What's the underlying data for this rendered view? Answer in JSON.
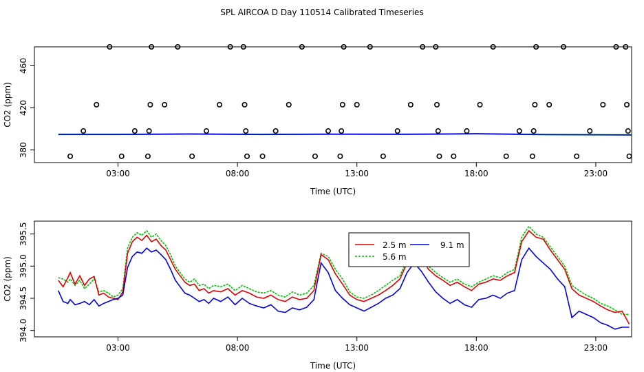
{
  "title": "SPL AIRCOA D  Day 110514  Calibrated Timeseries",
  "colors": {
    "axis": "#000000",
    "series_red": "#e00000",
    "series_green": "#00c000",
    "series_blue": "#0000e0",
    "teal": "#008080"
  },
  "chart_data": [
    {
      "type": "scatter",
      "xlabel": "Time (UTC)",
      "ylabel": "CO2 (ppm)",
      "xlim": [
        -0.5,
        24.5
      ],
      "ylim": [
        368,
        478
      ],
      "xticks": [
        3,
        8,
        13,
        18,
        23
      ],
      "xtick_labels": [
        "03:00",
        "08:00",
        "13:00",
        "18:00",
        "23:00"
      ],
      "yticks": [
        380,
        420,
        460
      ],
      "ytick_labels": [
        "380",
        "420",
        "460"
      ],
      "calibration_points": [
        {
          "x": 1.0,
          "y": 374
        },
        {
          "x": 1.55,
          "y": 398
        },
        {
          "x": 2.1,
          "y": 423
        },
        {
          "x": 2.65,
          "y": 478
        },
        {
          "x": 3.15,
          "y": 374
        },
        {
          "x": 3.7,
          "y": 398
        },
        {
          "x": 4.25,
          "y": 374
        },
        {
          "x": 4.3,
          "y": 398
        },
        {
          "x": 4.35,
          "y": 423
        },
        {
          "x": 4.4,
          "y": 478
        },
        {
          "x": 4.95,
          "y": 423
        },
        {
          "x": 5.5,
          "y": 478
        },
        {
          "x": 6.1,
          "y": 374
        },
        {
          "x": 6.7,
          "y": 398
        },
        {
          "x": 7.25,
          "y": 423
        },
        {
          "x": 7.7,
          "y": 478
        },
        {
          "x": 8.25,
          "y": 478
        },
        {
          "x": 8.3,
          "y": 423
        },
        {
          "x": 8.35,
          "y": 398
        },
        {
          "x": 8.4,
          "y": 374
        },
        {
          "x": 9.05,
          "y": 374
        },
        {
          "x": 9.6,
          "y": 398
        },
        {
          "x": 10.15,
          "y": 423
        },
        {
          "x": 10.7,
          "y": 478
        },
        {
          "x": 11.25,
          "y": 374
        },
        {
          "x": 11.8,
          "y": 398
        },
        {
          "x": 12.3,
          "y": 374
        },
        {
          "x": 12.35,
          "y": 398
        },
        {
          "x": 12.4,
          "y": 423
        },
        {
          "x": 12.45,
          "y": 478
        },
        {
          "x": 13.0,
          "y": 423
        },
        {
          "x": 13.55,
          "y": 478
        },
        {
          "x": 14.1,
          "y": 374
        },
        {
          "x": 14.7,
          "y": 398
        },
        {
          "x": 15.25,
          "y": 423
        },
        {
          "x": 15.75,
          "y": 478
        },
        {
          "x": 16.3,
          "y": 478
        },
        {
          "x": 16.35,
          "y": 423
        },
        {
          "x": 16.4,
          "y": 398
        },
        {
          "x": 16.45,
          "y": 374
        },
        {
          "x": 17.05,
          "y": 374
        },
        {
          "x": 17.6,
          "y": 398
        },
        {
          "x": 18.15,
          "y": 423
        },
        {
          "x": 18.7,
          "y": 478
        },
        {
          "x": 19.25,
          "y": 374
        },
        {
          "x": 19.8,
          "y": 398
        },
        {
          "x": 20.35,
          "y": 374
        },
        {
          "x": 20.4,
          "y": 398
        },
        {
          "x": 20.45,
          "y": 423
        },
        {
          "x": 20.5,
          "y": 478
        },
        {
          "x": 21.05,
          "y": 423
        },
        {
          "x": 21.65,
          "y": 478
        },
        {
          "x": 22.2,
          "y": 374
        },
        {
          "x": 22.75,
          "y": 398
        },
        {
          "x": 23.3,
          "y": 423
        },
        {
          "x": 23.85,
          "y": 478
        },
        {
          "x": 24.25,
          "y": 478
        },
        {
          "x": 24.3,
          "y": 423
        },
        {
          "x": 24.35,
          "y": 398
        },
        {
          "x": 24.4,
          "y": 374
        }
      ],
      "baseline": {
        "x": [
          0.5,
          3,
          6,
          9,
          12,
          15,
          18,
          21,
          24.5
        ],
        "y": [
          394.8,
          394.8,
          395.2,
          394.8,
          395.0,
          394.9,
          395.4,
          394.6,
          394.3
        ]
      }
    },
    {
      "type": "line",
      "xlabel": "Time (UTC)",
      "ylabel": "CO2 (ppm)",
      "xlim": [
        -0.5,
        24.5
      ],
      "ylim": [
        393.9,
        395.7
      ],
      "xticks": [
        3,
        8,
        13,
        18,
        23
      ],
      "xtick_labels": [
        "03:00",
        "08:00",
        "13:00",
        "18:00",
        "23:00"
      ],
      "yticks": [
        394.0,
        394.5,
        395.0,
        395.5
      ],
      "ytick_labels": [
        "394.0",
        "394.5",
        "395.0",
        "395.5"
      ],
      "legend": {
        "placement": "top-center",
        "entries": [
          "2.5 m",
          "9.1 m",
          "5.6 m"
        ]
      },
      "series": [
        {
          "name": "2.5 m",
          "color": "#e00000",
          "x": [
            0.5,
            0.7,
            0.9,
            1.0,
            1.2,
            1.4,
            1.6,
            1.8,
            2.0,
            2.2,
            2.4,
            2.6,
            2.8,
            3.0,
            3.2,
            3.4,
            3.6,
            3.8,
            4.0,
            4.2,
            4.4,
            4.6,
            4.8,
            5.0,
            5.2,
            5.4,
            5.6,
            5.8,
            6.0,
            6.2,
            6.4,
            6.6,
            6.8,
            7.0,
            7.3,
            7.6,
            7.9,
            8.2,
            8.5,
            8.8,
            9.1,
            9.4,
            9.7,
            10.0,
            10.3,
            10.6,
            10.9,
            11.2,
            11.5,
            11.8,
            12.1,
            12.4,
            12.7,
            13.0,
            13.3,
            13.6,
            13.9,
            14.2,
            14.5,
            14.8,
            15.1,
            15.4,
            15.7,
            16.0,
            16.3,
            16.6,
            16.9,
            17.2,
            17.5,
            17.8,
            18.1,
            18.4,
            18.7,
            19.0,
            19.3,
            19.6,
            19.9,
            20.2,
            20.5,
            20.8,
            21.1,
            21.4,
            21.7,
            22.0,
            22.3,
            22.6,
            22.9,
            23.2,
            23.5,
            23.8,
            24.1,
            24.4
          ],
          "y": [
            394.78,
            394.68,
            394.82,
            394.9,
            394.72,
            394.85,
            394.7,
            394.8,
            394.84,
            394.55,
            394.58,
            394.52,
            394.5,
            394.48,
            394.6,
            395.2,
            395.38,
            395.45,
            395.4,
            395.48,
            395.38,
            395.42,
            395.32,
            395.25,
            395.1,
            394.95,
            394.85,
            394.75,
            394.7,
            394.72,
            394.62,
            394.65,
            394.58,
            394.62,
            394.6,
            394.65,
            394.55,
            394.62,
            394.58,
            394.52,
            394.5,
            394.55,
            394.48,
            394.45,
            394.52,
            394.48,
            394.5,
            394.62,
            395.18,
            395.1,
            394.88,
            394.72,
            394.55,
            394.48,
            394.45,
            394.5,
            394.55,
            394.62,
            394.7,
            394.8,
            395.05,
            395.22,
            395.12,
            394.95,
            394.85,
            394.78,
            394.7,
            394.75,
            394.68,
            394.62,
            394.72,
            394.75,
            394.8,
            394.78,
            394.85,
            394.9,
            395.38,
            395.55,
            395.45,
            395.42,
            395.25,
            395.1,
            394.95,
            394.65,
            394.55,
            394.5,
            394.45,
            394.38,
            394.32,
            394.28,
            394.3,
            394.1
          ]
        },
        {
          "name": "9.1 m",
          "color": "#0000e0",
          "x": [
            0.5,
            0.7,
            0.9,
            1.0,
            1.2,
            1.4,
            1.6,
            1.8,
            2.0,
            2.2,
            2.4,
            2.6,
            2.8,
            3.0,
            3.2,
            3.4,
            3.6,
            3.8,
            4.0,
            4.2,
            4.4,
            4.6,
            4.8,
            5.0,
            5.2,
            5.4,
            5.6,
            5.8,
            6.0,
            6.2,
            6.4,
            6.6,
            6.8,
            7.0,
            7.3,
            7.6,
            7.9,
            8.2,
            8.5,
            8.8,
            9.1,
            9.4,
            9.7,
            10.0,
            10.3,
            10.6,
            10.9,
            11.2,
            11.5,
            11.8,
            12.1,
            12.4,
            12.7,
            13.0,
            13.3,
            13.6,
            13.9,
            14.2,
            14.5,
            14.8,
            15.1,
            15.4,
            15.7,
            16.0,
            16.3,
            16.6,
            16.9,
            17.2,
            17.5,
            17.8,
            18.1,
            18.4,
            18.7,
            19.0,
            19.3,
            19.6,
            19.9,
            20.2,
            20.5,
            20.8,
            21.1,
            21.4,
            21.7,
            22.0,
            22.3,
            22.6,
            22.9,
            23.2,
            23.5,
            23.8,
            24.1,
            24.4
          ],
          "y": [
            394.62,
            394.45,
            394.42,
            394.48,
            394.4,
            394.42,
            394.45,
            394.4,
            394.48,
            394.38,
            394.42,
            394.45,
            394.48,
            394.5,
            394.55,
            394.98,
            395.15,
            395.22,
            395.2,
            395.28,
            395.22,
            395.25,
            395.18,
            395.1,
            394.95,
            394.78,
            394.68,
            394.58,
            394.55,
            394.5,
            394.45,
            394.48,
            394.42,
            394.5,
            394.45,
            394.52,
            394.4,
            394.5,
            394.42,
            394.38,
            394.35,
            394.4,
            394.3,
            394.28,
            394.35,
            394.32,
            394.36,
            394.48,
            395.05,
            394.9,
            394.62,
            394.5,
            394.4,
            394.35,
            394.3,
            394.36,
            394.42,
            394.5,
            394.55,
            394.65,
            394.9,
            395.05,
            394.92,
            394.75,
            394.6,
            394.5,
            394.42,
            394.48,
            394.4,
            394.36,
            394.48,
            394.5,
            394.55,
            394.5,
            394.58,
            394.62,
            395.1,
            395.28,
            395.15,
            395.05,
            394.95,
            394.8,
            394.68,
            394.2,
            394.3,
            394.25,
            394.2,
            394.12,
            394.08,
            394.02,
            394.05,
            394.05
          ]
        },
        {
          "name": "5.6 m",
          "color": "#00c000",
          "x": [
            0.5,
            0.7,
            0.9,
            1.0,
            1.2,
            1.4,
            1.6,
            1.8,
            2.0,
            2.2,
            2.4,
            2.6,
            2.8,
            3.0,
            3.2,
            3.4,
            3.6,
            3.8,
            4.0,
            4.2,
            4.4,
            4.6,
            4.8,
            5.0,
            5.2,
            5.4,
            5.6,
            5.8,
            6.0,
            6.2,
            6.4,
            6.6,
            6.8,
            7.0,
            7.3,
            7.6,
            7.9,
            8.2,
            8.5,
            8.8,
            9.1,
            9.4,
            9.7,
            10.0,
            10.3,
            10.6,
            10.9,
            11.2,
            11.5,
            11.8,
            12.1,
            12.4,
            12.7,
            13.0,
            13.3,
            13.6,
            13.9,
            14.2,
            14.5,
            14.8,
            15.1,
            15.4,
            15.7,
            16.0,
            16.3,
            16.6,
            16.9,
            17.2,
            17.5,
            17.8,
            18.1,
            18.4,
            18.7,
            19.0,
            19.3,
            19.6,
            19.9,
            20.2,
            20.5,
            20.8,
            21.1,
            21.4,
            21.7,
            22.0,
            22.3,
            22.6,
            22.9,
            23.2,
            23.5,
            23.8,
            24.1,
            24.4
          ],
          "y": [
            394.82,
            394.8,
            394.75,
            394.8,
            394.7,
            394.78,
            394.65,
            394.72,
            394.8,
            394.6,
            394.62,
            394.58,
            394.52,
            394.55,
            394.65,
            395.28,
            395.45,
            395.52,
            395.48,
            395.55,
            395.45,
            395.5,
            395.4,
            395.32,
            395.18,
            395.0,
            394.9,
            394.8,
            394.75,
            394.8,
            394.7,
            394.72,
            394.65,
            394.7,
            394.68,
            394.72,
            394.62,
            394.7,
            394.65,
            394.6,
            394.58,
            394.62,
            394.55,
            394.52,
            394.6,
            394.55,
            394.58,
            394.7,
            395.2,
            395.15,
            394.95,
            394.8,
            394.6,
            394.52,
            394.5,
            394.55,
            394.62,
            394.7,
            394.78,
            394.85,
            395.1,
            395.28,
            395.18,
            395.0,
            394.9,
            394.82,
            394.75,
            394.8,
            394.72,
            394.68,
            394.75,
            394.8,
            394.85,
            394.82,
            394.9,
            394.95,
            395.45,
            395.62,
            395.5,
            395.45,
            395.3,
            395.15,
            395.0,
            394.7,
            394.62,
            394.55,
            394.5,
            394.42,
            394.38,
            394.32,
            394.25,
            394.25
          ]
        }
      ]
    }
  ]
}
